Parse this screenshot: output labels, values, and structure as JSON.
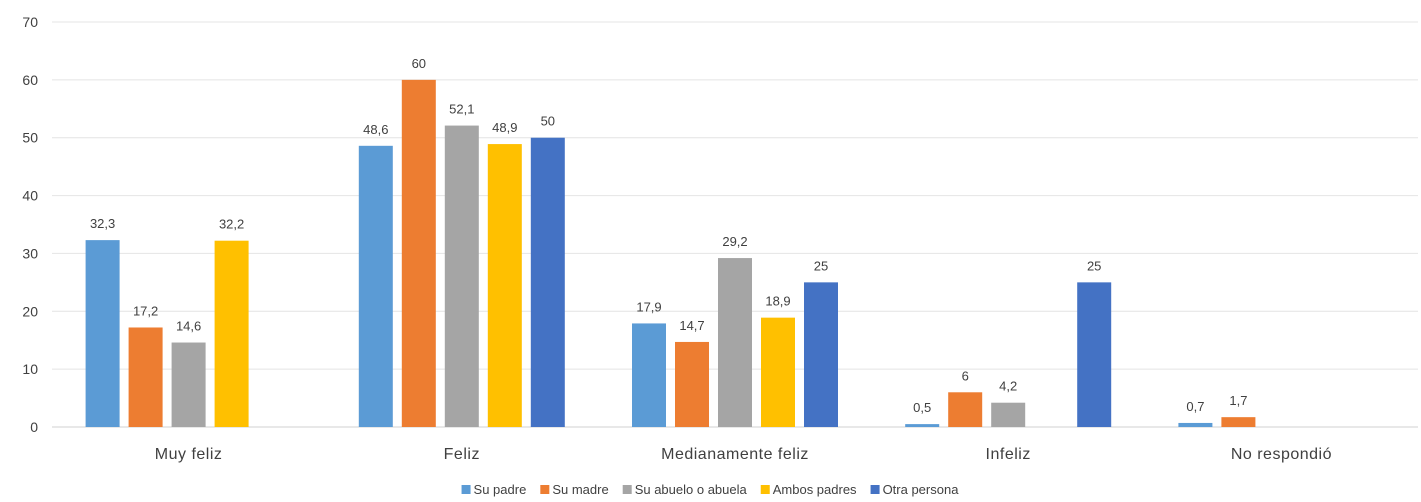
{
  "chart_data": {
    "type": "bar",
    "title": "",
    "xlabel": "",
    "ylabel": "",
    "ylim": [
      0,
      70
    ],
    "yticks": [
      0,
      10,
      20,
      30,
      40,
      50,
      60,
      70
    ],
    "grid": true,
    "legend_position": "bottom",
    "categories": [
      "Muy feliz",
      "Feliz",
      "Medianamente feliz",
      "Infeliz",
      "No respondió"
    ],
    "series": [
      {
        "name": "Su padre",
        "color": "#5B9BD5",
        "values": [
          32.3,
          48.6,
          17.9,
          0.5,
          0.7
        ],
        "labels": [
          "32,3",
          "48,6",
          "17,9",
          "0,5",
          "0,7"
        ]
      },
      {
        "name": "Su madre",
        "color": "#ED7D31",
        "values": [
          17.2,
          60,
          14.7,
          6,
          1.7
        ],
        "labels": [
          "17,2",
          "60",
          "14,7",
          "6",
          "1,7"
        ]
      },
      {
        "name": "Su abuelo o abuela",
        "color": "#A5A5A5",
        "values": [
          14.6,
          52.1,
          29.2,
          4.2,
          null
        ],
        "labels": [
          "14,6",
          "52,1",
          "29,2",
          "4,2",
          ""
        ]
      },
      {
        "name": "Ambos padres",
        "color": "#FFC000",
        "values": [
          32.2,
          48.9,
          18.9,
          null,
          null
        ],
        "labels": [
          "32,2",
          "48,9",
          "18,9",
          "",
          ""
        ]
      },
      {
        "name": "Otra persona",
        "color": "#4472C4",
        "values": [
          null,
          50,
          25,
          25,
          null
        ],
        "labels": [
          "",
          "50",
          "25",
          "25",
          ""
        ]
      }
    ]
  }
}
